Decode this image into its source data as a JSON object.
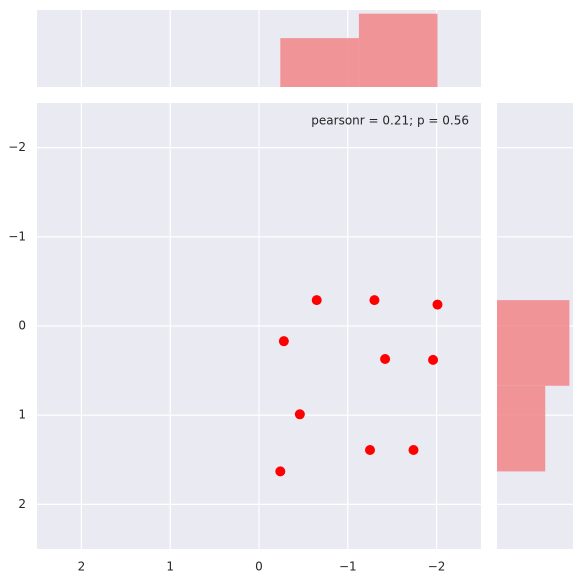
{
  "chart_data": {
    "type": "scatter",
    "annotation": "pearsonr = 0.21; p = 0.56",
    "x": [
      -0.65,
      -1.3,
      -2.01,
      -0.28,
      -1.42,
      -1.96,
      -0.46,
      -1.25,
      -1.74,
      -0.24
    ],
    "y": [
      -0.29,
      -0.29,
      -0.24,
      0.17,
      0.37,
      0.38,
      0.99,
      1.39,
      1.39,
      1.63
    ],
    "color": "#ff0000",
    "xlim": [
      2.5,
      -2.5
    ],
    "ylim": [
      2.5,
      -2.5
    ],
    "xticks": [
      {
        "value": 2,
        "label": "2"
      },
      {
        "value": 1,
        "label": "1"
      },
      {
        "value": 0,
        "label": "0"
      },
      {
        "value": -1,
        "label": "−1"
      },
      {
        "value": -2,
        "label": "−2"
      }
    ],
    "yticks": [
      {
        "value": -2,
        "label": "−2"
      },
      {
        "value": -1,
        "label": "−1"
      },
      {
        "value": 0,
        "label": "0"
      },
      {
        "value": 1,
        "label": "1"
      },
      {
        "value": 2,
        "label": "2"
      }
    ],
    "grid": true,
    "x_hist": {
      "bins": [
        -0.24,
        -1.125,
        -2.01
      ],
      "counts": [
        4,
        6
      ],
      "lim": [
        0,
        6.3
      ],
      "color": "#f28b8e"
    },
    "y_hist": {
      "bins": [
        -0.29,
        0.67,
        1.63
      ],
      "counts": [
        6,
        4
      ],
      "lim": [
        0,
        6.3
      ],
      "color": "#f28b8e"
    }
  }
}
